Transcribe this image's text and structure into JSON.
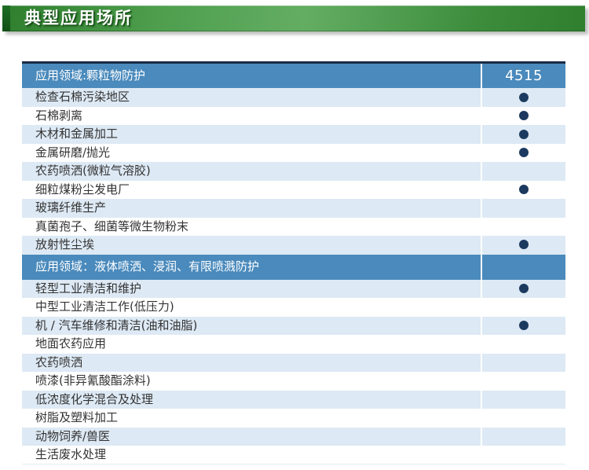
{
  "banner": {
    "title": "典型应用场所"
  },
  "colors": {
    "banner_green_light": "#63ad63",
    "banner_green_dark": "#2e7e2e",
    "banner_accent_strip": "#145c1a",
    "section_header_blue": "#4a8abc",
    "row_alt_blue": "#dde9f4",
    "dot_navy": "#1c3a5f",
    "table_top_border": "#1a2b45"
  },
  "table": {
    "product_column_header": "4515",
    "sections": [
      {
        "header": "应用领域:颗粒物防护",
        "rows": [
          {
            "label": "检查石棉污染地区",
            "marked": true
          },
          {
            "label": "石棉剥离",
            "marked": true
          },
          {
            "label": "木材和金属加工",
            "marked": true
          },
          {
            "label": "金属研磨/抛光",
            "marked": true
          },
          {
            "label": "农药喷洒(微粒气溶胶)",
            "marked": false
          },
          {
            "label": "细粒煤粉尘发电厂",
            "marked": true
          },
          {
            "label": "玻璃纤维生产",
            "marked": false
          },
          {
            "label": "真菌孢子、细菌等微生物粉末",
            "marked": false
          },
          {
            "label": "放射性尘埃",
            "marked": true
          }
        ]
      },
      {
        "header": "应用领域：液体喷洒、浸润、有限喷溅防护",
        "rows": [
          {
            "label": "轻型工业清洁和维护",
            "marked": true
          },
          {
            "label": "中型工业清洁工作(低压力)",
            "marked": false
          },
          {
            "label": "机 / 汽车维修和清洁(油和油脂)",
            "marked": true
          },
          {
            "label": "地面农药应用",
            "marked": false
          },
          {
            "label": "农药喷洒",
            "marked": false
          },
          {
            "label": "喷漆(非异氰酸酯涂料)",
            "marked": false
          },
          {
            "label": "低浓度化学混合及处理",
            "marked": false
          },
          {
            "label": "树脂及塑料加工",
            "marked": false
          },
          {
            "label": "动物饲养/兽医",
            "marked": false
          },
          {
            "label": "生活废水处理",
            "marked": false
          }
        ]
      }
    ]
  }
}
